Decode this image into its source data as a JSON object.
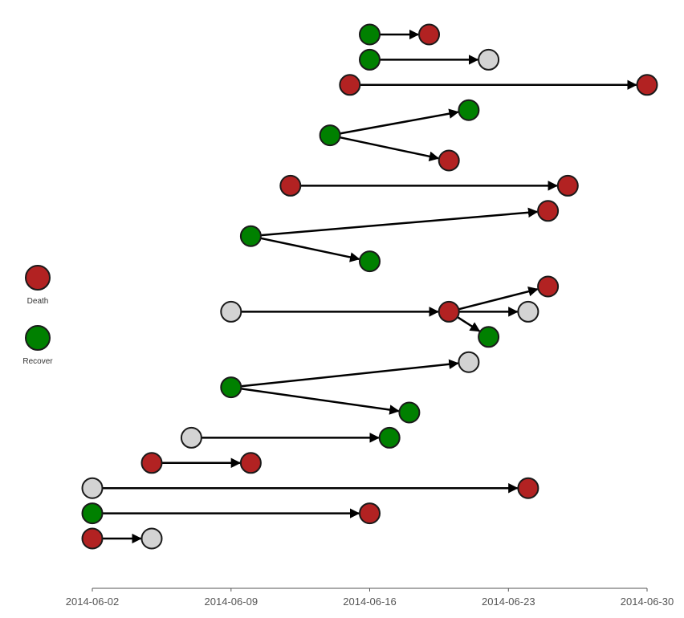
{
  "chart_data": {
    "type": "transmission-tree",
    "x_axis": {
      "type": "date",
      "range": [
        "2014-06-02",
        "2014-06-30"
      ],
      "ticks": [
        "2014-06-02",
        "2014-06-09",
        "2014-06-16",
        "2014-06-23",
        "2014-06-30"
      ]
    },
    "status_colors": {
      "Death": "#b22222",
      "Recover": "#008000",
      "Unknown": "#d3d3d3"
    },
    "legend": {
      "placement": "left",
      "entries": [
        {
          "label": "Death",
          "status": "Death"
        },
        {
          "label": "Recover",
          "status": "Recover"
        }
      ]
    },
    "cases": [
      {
        "id": "c1",
        "date": "2014-06-16",
        "status": "Recover"
      },
      {
        "id": "c2",
        "date": "2014-06-19",
        "status": "Death"
      },
      {
        "id": "c3",
        "date": "2014-06-16",
        "status": "Recover"
      },
      {
        "id": "c4",
        "date": "2014-06-22",
        "status": "Unknown"
      },
      {
        "id": "c5",
        "date": "2014-06-15",
        "status": "Death"
      },
      {
        "id": "c6",
        "date": "2014-06-30",
        "status": "Death"
      },
      {
        "id": "c7",
        "date": "2014-06-21",
        "status": "Recover"
      },
      {
        "id": "c8",
        "date": "2014-06-14",
        "status": "Recover"
      },
      {
        "id": "c9",
        "date": "2014-06-20",
        "status": "Death"
      },
      {
        "id": "c10",
        "date": "2014-06-12",
        "status": "Death"
      },
      {
        "id": "c11",
        "date": "2014-06-26",
        "status": "Death"
      },
      {
        "id": "c12",
        "date": "2014-06-25",
        "status": "Death"
      },
      {
        "id": "c13",
        "date": "2014-06-10",
        "status": "Recover"
      },
      {
        "id": "c14",
        "date": "2014-06-16",
        "status": "Recover"
      },
      {
        "id": "c15",
        "date": "2014-06-25",
        "status": "Death"
      },
      {
        "id": "c16",
        "date": "2014-06-09",
        "status": "Unknown"
      },
      {
        "id": "c17",
        "date": "2014-06-20",
        "status": "Death"
      },
      {
        "id": "c18",
        "date": "2014-06-24",
        "status": "Unknown"
      },
      {
        "id": "c19",
        "date": "2014-06-22",
        "status": "Recover"
      },
      {
        "id": "c20",
        "date": "2014-06-21",
        "status": "Unknown"
      },
      {
        "id": "c21",
        "date": "2014-06-09",
        "status": "Recover"
      },
      {
        "id": "c22",
        "date": "2014-06-18",
        "status": "Recover"
      },
      {
        "id": "c23",
        "date": "2014-06-07",
        "status": "Unknown"
      },
      {
        "id": "c24",
        "date": "2014-06-17",
        "status": "Recover"
      },
      {
        "id": "c25",
        "date": "2014-06-05",
        "status": "Death"
      },
      {
        "id": "c26",
        "date": "2014-06-10",
        "status": "Death"
      },
      {
        "id": "c27",
        "date": "2014-06-02",
        "status": "Unknown"
      },
      {
        "id": "c28",
        "date": "2014-06-24",
        "status": "Death"
      },
      {
        "id": "c29",
        "date": "2014-06-02",
        "status": "Recover"
      },
      {
        "id": "c30",
        "date": "2014-06-16",
        "status": "Death"
      },
      {
        "id": "c31",
        "date": "2014-06-02",
        "status": "Death"
      },
      {
        "id": "c32",
        "date": "2014-06-05",
        "status": "Unknown"
      }
    ],
    "transmissions": [
      {
        "from": "c1",
        "to": "c2"
      },
      {
        "from": "c3",
        "to": "c4"
      },
      {
        "from": "c5",
        "to": "c6"
      },
      {
        "from": "c8",
        "to": "c7"
      },
      {
        "from": "c8",
        "to": "c9"
      },
      {
        "from": "c10",
        "to": "c11"
      },
      {
        "from": "c13",
        "to": "c12"
      },
      {
        "from": "c13",
        "to": "c14"
      },
      {
        "from": "c16",
        "to": "c17"
      },
      {
        "from": "c17",
        "to": "c15"
      },
      {
        "from": "c17",
        "to": "c18"
      },
      {
        "from": "c17",
        "to": "c19"
      },
      {
        "from": "c21",
        "to": "c20"
      },
      {
        "from": "c21",
        "to": "c22"
      },
      {
        "from": "c23",
        "to": "c24"
      },
      {
        "from": "c25",
        "to": "c26"
      },
      {
        "from": "c27",
        "to": "c28"
      },
      {
        "from": "c29",
        "to": "c30"
      },
      {
        "from": "c31",
        "to": "c32"
      }
    ]
  }
}
